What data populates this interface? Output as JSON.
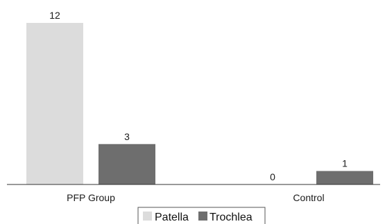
{
  "chart_data": {
    "type": "bar",
    "categories": [
      "PFP Group",
      "Control"
    ],
    "series": [
      {
        "name": "Patella",
        "values": [
          12,
          0
        ],
        "color": "#dcdcdc"
      },
      {
        "name": "Trochlea",
        "values": [
          3,
          1
        ],
        "color": "#6e6e6e"
      }
    ],
    "data_labels": [
      [
        "12",
        "0"
      ],
      [
        "3",
        "1"
      ]
    ],
    "ylim": [
      0,
      12
    ],
    "grid": false,
    "legend": "bottom-center",
    "title": "",
    "xlabel": "",
    "ylabel": ""
  }
}
